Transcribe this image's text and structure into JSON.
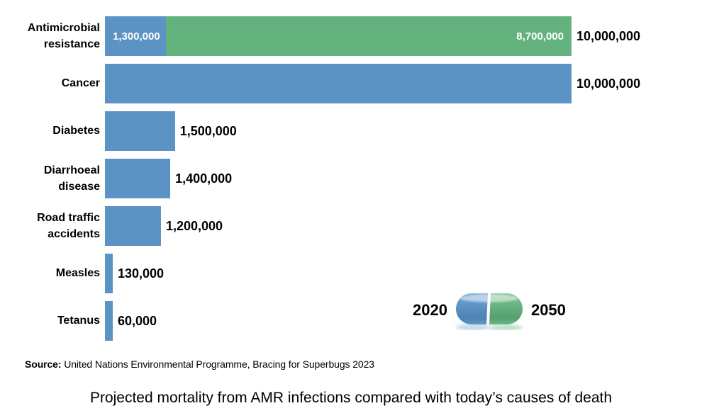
{
  "page": {
    "background": "#ffffff"
  },
  "chart_data": {
    "type": "bar",
    "orientation": "horizontal",
    "title": "Projected mortality from AMR infections compared with today’s causes of death",
    "source_label": "Source:",
    "source_text": "United Nations Environmental Programme, Bracing for Superbugs 2023",
    "xlim": [
      0,
      10000000
    ],
    "grid": false,
    "colors": {
      "blue_2020": "#5b93c4",
      "green_2050": "#63b27e"
    },
    "legend": {
      "icon": "pill-capsule-icon",
      "position": "bottom-right",
      "items": [
        {
          "label": "2020",
          "color": "#5b93c4"
        },
        {
          "label": "2050",
          "color": "#63b27e"
        }
      ]
    },
    "categories": [
      "Antimicrobial resistance",
      "Cancer",
      "Diabetes",
      "Diarrhoeal disease",
      "Road traffic accidents",
      "Measles",
      "Tetanus"
    ],
    "rows": [
      {
        "category": "Antimicrobial resistance",
        "label_lines": [
          "Antimicrobial",
          "resistance"
        ],
        "segments": [
          {
            "series": "2020",
            "value": 1300000,
            "label": "1,300,000",
            "color": "#5b93c4"
          },
          {
            "series": "2050",
            "value": 8700000,
            "label": "8,700,000",
            "color": "#63b27e"
          }
        ],
        "total": 10000000,
        "total_label": "10,000,000"
      },
      {
        "category": "Cancer",
        "label_lines": [
          "Cancer"
        ],
        "segments": [
          {
            "series": "2020",
            "value": 10000000,
            "label": "",
            "color": "#5b93c4"
          }
        ],
        "total": 10000000,
        "total_label": "10,000,000"
      },
      {
        "category": "Diabetes",
        "label_lines": [
          "Diabetes"
        ],
        "segments": [
          {
            "series": "2020",
            "value": 1500000,
            "label": "",
            "color": "#5b93c4"
          }
        ],
        "total": 1500000,
        "total_label": "1,500,000"
      },
      {
        "category": "Diarrhoeal disease",
        "label_lines": [
          "Diarrhoeal",
          "disease"
        ],
        "segments": [
          {
            "series": "2020",
            "value": 1400000,
            "label": "",
            "color": "#5b93c4"
          }
        ],
        "total": 1400000,
        "total_label": "1,400,000"
      },
      {
        "category": "Road traffic accidents",
        "label_lines": [
          "Road traffic",
          "accidents"
        ],
        "segments": [
          {
            "series": "2020",
            "value": 1200000,
            "label": "",
            "color": "#5b93c4"
          }
        ],
        "total": 1200000,
        "total_label": "1,200,000"
      },
      {
        "category": "Measles",
        "label_lines": [
          "Measles"
        ],
        "segments": [
          {
            "series": "2020",
            "value": 130000,
            "label": "",
            "color": "#5b93c4"
          }
        ],
        "total": 130000,
        "total_label": "130,000"
      },
      {
        "category": "Tetanus",
        "label_lines": [
          "Tetanus"
        ],
        "segments": [
          {
            "series": "2020",
            "value": 60000,
            "label": "",
            "color": "#5b93c4"
          }
        ],
        "total": 60000,
        "total_label": "60,000"
      }
    ]
  }
}
